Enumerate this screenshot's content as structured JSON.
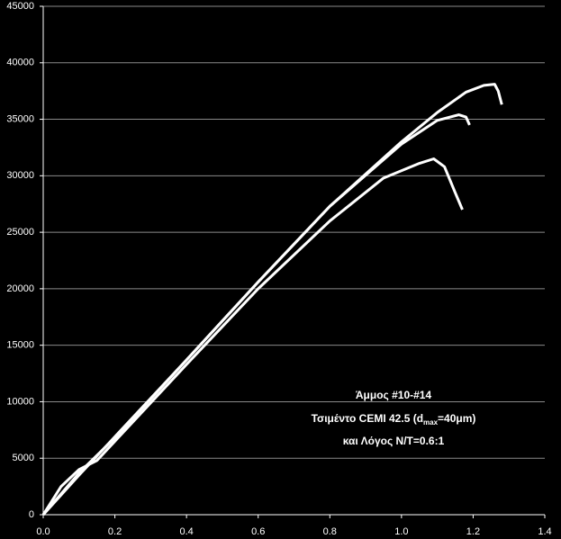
{
  "chart_data": {
    "type": "line",
    "annotation": {
      "line1": "Άμμος #10-#14",
      "line2_start": "Τσιμέντο CEMI 42.5 (d",
      "line2_sub": "max",
      "line2_end": "=40μm)",
      "line3": "και Λόγος Ν/Τ=0.6:1"
    },
    "series": [
      {
        "color": "#ffffff",
        "x": [
          0,
          0.1,
          0.2,
          0.4,
          0.6,
          0.8,
          1.0,
          1.1,
          1.18,
          1.23,
          1.26,
          1.27,
          1.28
        ],
        "values": [
          0,
          3700,
          6800,
          13700,
          20600,
          27300,
          33000,
          35600,
          37400,
          38000,
          38100,
          37500,
          36300
        ]
      },
      {
        "color": "#ffffff",
        "x": [
          0,
          0.1,
          0.2,
          0.4,
          0.6,
          0.8,
          1.0,
          1.1,
          1.16,
          1.18,
          1.19
        ],
        "values": [
          0,
          3500,
          6900,
          13700,
          20600,
          27300,
          32800,
          34900,
          35400,
          35200,
          34500
        ]
      },
      {
        "color": "#ffffff",
        "x": [
          0,
          0.05,
          0.1,
          0.15,
          0.2,
          0.4,
          0.6,
          0.8,
          0.95,
          1.05,
          1.09,
          1.12,
          1.15,
          1.17
        ],
        "values": [
          0,
          2500,
          4000,
          4800,
          6500,
          13300,
          20000,
          26000,
          29800,
          31100,
          31500,
          30800,
          28500,
          27000
        ]
      }
    ],
    "xlim": [
      0,
      1.4
    ],
    "xticks": [
      {
        "value": 0,
        "label": "0.0"
      },
      0.2,
      0.4,
      0.6,
      0.8,
      {
        "value": 1,
        "label": "1.0"
      },
      1.2,
      1.4
    ],
    "ylim": [
      0,
      45000
    ],
    "yticks": [
      0,
      5000,
      10000,
      15000,
      20000,
      25000,
      30000,
      35000,
      40000,
      45000
    ],
    "grid": true
  }
}
